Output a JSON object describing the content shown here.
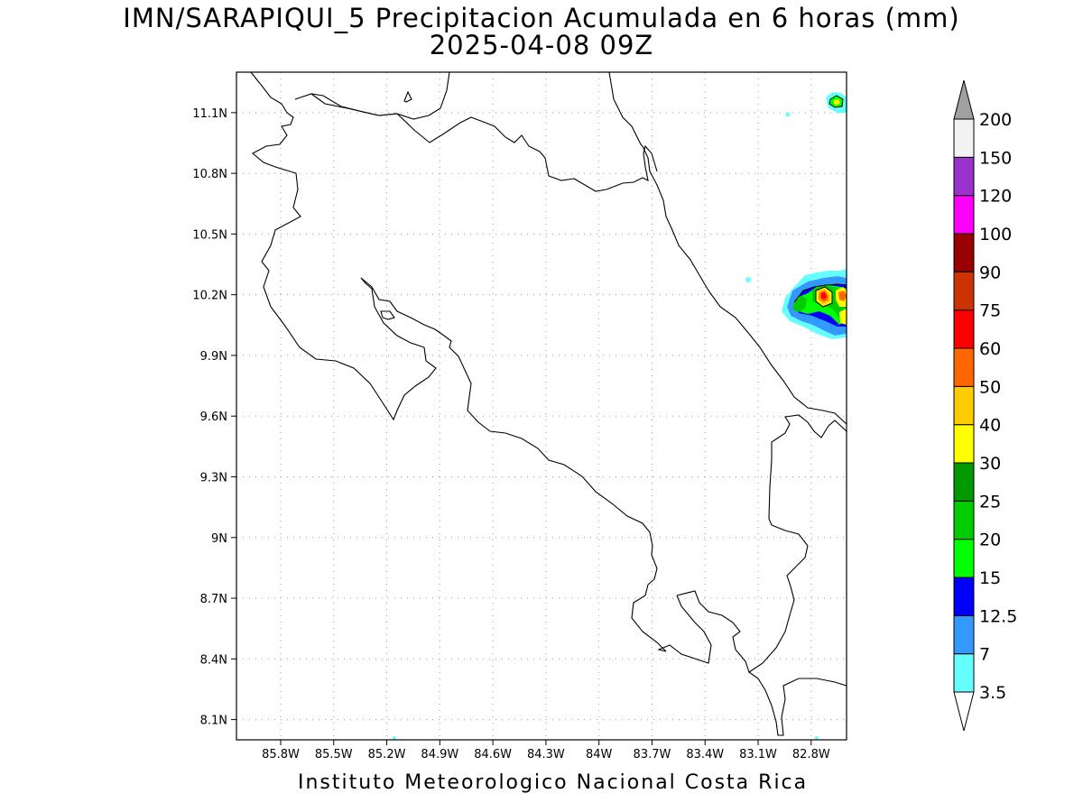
{
  "title": {
    "line1": "IMN/SARAPIQUI_5 Precipitacion Acumulada en 6 horas (mm)",
    "line2": "2025-04-08 09Z"
  },
  "footer": "Instituto Meteorologico Nacional Costa Rica",
  "map": {
    "lon_range": [
      -86.05,
      -82.6
    ],
    "lat_range": [
      8.0,
      11.3
    ],
    "lat_ticks": [
      {
        "value": 11.1,
        "label": "11.1N"
      },
      {
        "value": 10.8,
        "label": "10.8N"
      },
      {
        "value": 10.5,
        "label": "10.5N"
      },
      {
        "value": 10.2,
        "label": "10.2N"
      },
      {
        "value": 9.9,
        "label": "9.9N"
      },
      {
        "value": 9.6,
        "label": "9.6N"
      },
      {
        "value": 9.3,
        "label": "9.3N"
      },
      {
        "value": 9.0,
        "label": "9N"
      },
      {
        "value": 8.7,
        "label": "8.7N"
      },
      {
        "value": 8.4,
        "label": "8.4N"
      },
      {
        "value": 8.1,
        "label": "8.1N"
      }
    ],
    "lon_ticks": [
      {
        "value": -85.8,
        "label": "85.8W"
      },
      {
        "value": -85.5,
        "label": "85.5W"
      },
      {
        "value": -85.2,
        "label": "85.2W"
      },
      {
        "value": -84.9,
        "label": "84.9W"
      },
      {
        "value": -84.6,
        "label": "84.6W"
      },
      {
        "value": -84.3,
        "label": "84.3W"
      },
      {
        "value": -84.0,
        "label": "84W"
      },
      {
        "value": -83.7,
        "label": "83.7W"
      },
      {
        "value": -83.4,
        "label": "83.4W"
      },
      {
        "value": -83.1,
        "label": "83.1W"
      },
      {
        "value": -82.8,
        "label": "82.8W"
      }
    ],
    "grid": true
  },
  "colorbar": {
    "labels": [
      "3.5",
      "7",
      "12.5",
      "15",
      "20",
      "25",
      "30",
      "40",
      "50",
      "60",
      "75",
      "90",
      "100",
      "120",
      "150",
      "200"
    ],
    "colors": [
      "#66ffff",
      "#3399ff",
      "#0000ff",
      "#00ff00",
      "#00cc00",
      "#009900",
      "#ffff00",
      "#ffcc00",
      "#ff6600",
      "#ff0000",
      "#cc3300",
      "#990000",
      "#ff00ff",
      "#9933cc",
      "#f2f2f2"
    ],
    "top_triangle_color": "#a0a0a0",
    "bottom_triangle_color": "#ffffff"
  }
}
